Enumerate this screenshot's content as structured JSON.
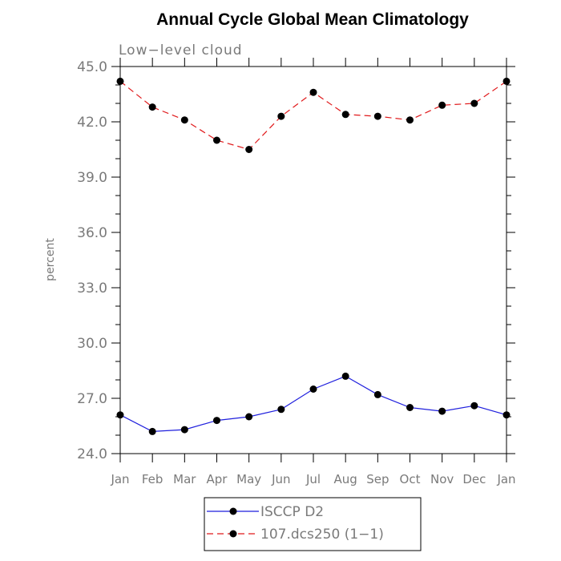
{
  "chart_data": {
    "type": "line",
    "title": "Annual Cycle Global Mean Climatology",
    "subtitle": "Low−level cloud",
    "xlabel": "",
    "ylabel": "percent",
    "ylim": [
      24.0,
      45.0
    ],
    "yticks": [
      "24.0",
      "27.0",
      "30.0",
      "33.0",
      "36.0",
      "39.0",
      "42.0",
      "45.0"
    ],
    "categories": [
      "Jan",
      "Feb",
      "Mar",
      "Apr",
      "May",
      "Jun",
      "Jul",
      "Aug",
      "Sep",
      "Oct",
      "Nov",
      "Dec",
      "Jan"
    ],
    "series": [
      {
        "name": "ISCCP D2",
        "color": "#1f1fdd",
        "dash": "solid",
        "values": [
          26.1,
          25.2,
          25.3,
          25.8,
          26.0,
          26.4,
          27.5,
          28.2,
          27.2,
          26.5,
          26.3,
          26.6,
          26.1
        ]
      },
      {
        "name": "107.dcs250 (1−1)",
        "color": "#e0191b",
        "dash": "dashed",
        "values": [
          44.2,
          42.8,
          42.1,
          41.0,
          40.5,
          42.3,
          43.6,
          42.4,
          42.3,
          42.1,
          42.9,
          43.0,
          44.2
        ]
      }
    ],
    "legend_position": "bottom-center"
  }
}
